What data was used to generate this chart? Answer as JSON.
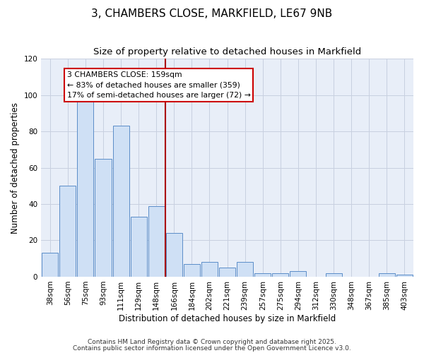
{
  "title": "3, CHAMBERS CLOSE, MARKFIELD, LE67 9NB",
  "subtitle": "Size of property relative to detached houses in Markfield",
  "xlabel": "Distribution of detached houses by size in Markfield",
  "ylabel": "Number of detached properties",
  "categories": [
    "38sqm",
    "56sqm",
    "75sqm",
    "93sqm",
    "111sqm",
    "129sqm",
    "148sqm",
    "166sqm",
    "184sqm",
    "202sqm",
    "221sqm",
    "239sqm",
    "257sqm",
    "275sqm",
    "294sqm",
    "312sqm",
    "330sqm",
    "348sqm",
    "367sqm",
    "385sqm",
    "403sqm"
  ],
  "values": [
    13,
    50,
    98,
    65,
    83,
    33,
    39,
    24,
    7,
    8,
    5,
    8,
    2,
    2,
    3,
    0,
    2,
    0,
    0,
    2,
    1
  ],
  "bar_color": "#cfe0f5",
  "bar_edge_color": "#5b8dc8",
  "vline_x_index": 7,
  "vline_color": "#aa0000",
  "ylim": [
    0,
    120
  ],
  "yticks": [
    0,
    20,
    40,
    60,
    80,
    100,
    120
  ],
  "annotation_title": "3 CHAMBERS CLOSE: 159sqm",
  "annotation_line1": "← 83% of detached houses are smaller (359)",
  "annotation_line2": "17% of semi-detached houses are larger (72) →",
  "annotation_box_facecolor": "#ffffff",
  "annotation_box_edgecolor": "#cc0000",
  "footer1": "Contains HM Land Registry data © Crown copyright and database right 2025.",
  "footer2": "Contains public sector information licensed under the Open Government Licence v3.0.",
  "fig_facecolor": "#ffffff",
  "plot_facecolor": "#e8eef8",
  "grid_color": "#c8d0e0",
  "title_fontsize": 11,
  "subtitle_fontsize": 9.5,
  "tick_fontsize": 7.5,
  "ylabel_fontsize": 8.5,
  "xlabel_fontsize": 8.5,
  "footer_fontsize": 6.5,
  "annotation_fontsize": 7.8
}
